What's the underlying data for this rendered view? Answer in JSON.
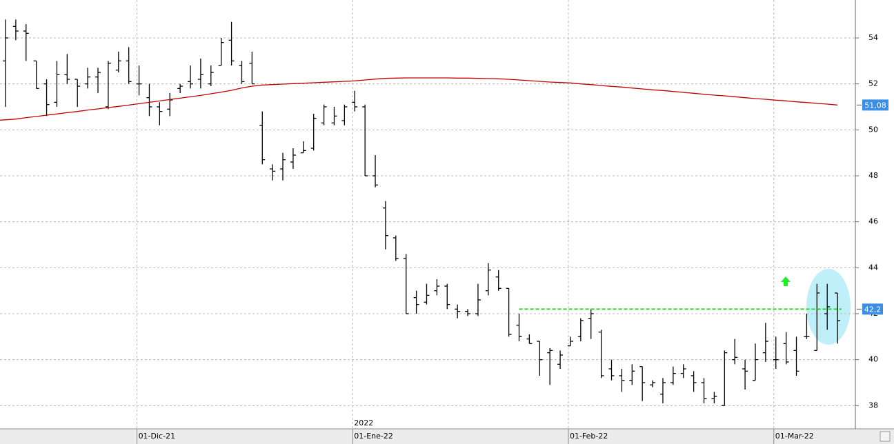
{
  "chart_data": {
    "type": "ohlc",
    "categories": [
      null,
      null,
      null,
      null,
      null,
      null,
      null,
      null,
      null,
      null,
      null,
      null,
      null,
      "01-Dic-21",
      null,
      null,
      null,
      null,
      null,
      null,
      null,
      null,
      null,
      null,
      null,
      null,
      null,
      null,
      null,
      null,
      null,
      null,
      null,
      null,
      "01-Ene-22",
      null,
      null,
      null,
      null,
      null,
      null,
      null,
      null,
      null,
      null,
      null,
      null,
      null,
      null,
      null,
      null,
      null,
      null,
      null,
      null,
      "01-Feb-22",
      null,
      null,
      null,
      null,
      null,
      null,
      null,
      null,
      null,
      null,
      null,
      null,
      null,
      null,
      null,
      null,
      null,
      null,
      null,
      "01-Mar-22",
      null,
      null,
      null,
      null,
      null,
      null
    ],
    "year_label": {
      "text": "2022",
      "index": 34
    },
    "ohlc": {
      "color": "#000000",
      "open": [
        53.0,
        54.5,
        54.3,
        53.0,
        52.0,
        51.2,
        52.4,
        52.2,
        52.0,
        52.3,
        51.0,
        52.6,
        53.0,
        52.0,
        51.4,
        51.0,
        50.9,
        51.8,
        52.1,
        52.2,
        52.0,
        52.8,
        53.9,
        52.8,
        52.9,
        50.2,
        48.3,
        48.3,
        48.6,
        49.0,
        49.2,
        50.3,
        50.3,
        50.4,
        51.2,
        51.0,
        48.0,
        46.6,
        45.3,
        44.4,
        42.7,
        42.5,
        43.0,
        43.2,
        42.2,
        42.1,
        42.0,
        43.0,
        43.6,
        43.1,
        41.5,
        40.9,
        40.8,
        40.3,
        39.8,
        40.6,
        41.0,
        41.8,
        41.2,
        39.6,
        39.3,
        39.1,
        39.7,
        38.9,
        38.5,
        39.0,
        39.4,
        39.3,
        39.0,
        38.3,
        38.0,
        40.0,
        39.6,
        39.1,
        40.3,
        40.0,
        40.7,
        40.4,
        41.0,
        40.4,
        42.0,
        42.9
      ],
      "high": [
        54.8,
        54.8,
        54.6,
        53.0,
        52.2,
        53.0,
        53.3,
        52.2,
        52.7,
        52.7,
        53.0,
        53.4,
        53.6,
        52.8,
        52.0,
        51.2,
        51.6,
        52.0,
        52.8,
        53.1,
        52.8,
        54.0,
        54.7,
        53.0,
        53.4,
        50.8,
        48.5,
        49.0,
        49.2,
        49.5,
        50.7,
        51.1,
        51.0,
        51.1,
        51.7,
        51.1,
        48.9,
        46.9,
        45.4,
        44.6,
        43.0,
        43.3,
        43.5,
        43.3,
        42.4,
        42.2,
        43.3,
        44.2,
        43.9,
        43.1,
        42.0,
        41.1,
        40.8,
        40.5,
        40.4,
        41.0,
        41.8,
        42.2,
        41.3,
        40.0,
        39.6,
        39.8,
        39.7,
        39.1,
        39.2,
        39.7,
        39.8,
        39.5,
        39.2,
        38.6,
        40.4,
        40.9,
        40.0,
        40.7,
        41.6,
        41.0,
        41.2,
        41.0,
        42.0,
        43.3,
        43.3,
        42.9
      ],
      "low": [
        51.0,
        53.9,
        53.0,
        51.8,
        50.6,
        51.0,
        52.0,
        51.0,
        51.8,
        51.6,
        50.9,
        52.5,
        52.0,
        51.5,
        50.6,
        50.2,
        50.6,
        51.6,
        51.8,
        51.8,
        51.9,
        52.8,
        52.8,
        52.0,
        52.0,
        48.5,
        47.8,
        47.8,
        48.3,
        49.0,
        49.1,
        50.2,
        50.2,
        50.2,
        50.8,
        48.0,
        47.5,
        44.8,
        44.3,
        42.0,
        42.0,
        42.4,
        42.8,
        42.2,
        41.8,
        41.9,
        41.9,
        42.8,
        43.0,
        41.0,
        40.8,
        40.7,
        39.3,
        38.9,
        39.6,
        40.6,
        40.8,
        40.9,
        39.2,
        39.1,
        38.6,
        38.9,
        38.2,
        38.8,
        38.1,
        38.9,
        39.2,
        38.6,
        38.1,
        38.1,
        38.0,
        39.8,
        38.7,
        39.1,
        39.9,
        39.6,
        39.8,
        39.3,
        40.9,
        40.4,
        41.3,
        40.7
      ],
      "close": [
        54.0,
        54.3,
        54.2,
        51.8,
        51.1,
        52.4,
        52.2,
        51.9,
        52.3,
        52.5,
        52.9,
        53.0,
        52.1,
        52.0,
        51.0,
        50.8,
        51.3,
        51.9,
        52.0,
        52.4,
        52.5,
        53.8,
        53.0,
        52.1,
        52.0,
        48.7,
        48.2,
        48.7,
        48.9,
        49.1,
        50.5,
        51.0,
        50.6,
        51.0,
        51.0,
        48.0,
        47.6,
        45.4,
        44.4,
        42.0,
        42.4,
        42.8,
        43.2,
        42.4,
        42.1,
        42.0,
        42.6,
        43.9,
        43.1,
        41.1,
        41.0,
        40.7,
        40.0,
        40.4,
        40.2,
        40.8,
        41.7,
        42.0,
        39.3,
        39.3,
        39.1,
        39.5,
        39.0,
        39.0,
        39.0,
        39.4,
        39.6,
        39.0,
        38.3,
        38.4,
        40.3,
        40.1,
        39.5,
        40.0,
        40.8,
        40.0,
        39.9,
        39.5,
        41.0,
        42.9,
        42.3,
        41.7
      ]
    },
    "ma": {
      "color": "#c00000",
      "last_label": "51,08",
      "values": [
        50.42,
        50.47,
        50.53,
        50.58,
        50.64,
        50.69,
        50.75,
        50.8,
        50.86,
        50.91,
        50.97,
        51.02,
        51.08,
        51.14,
        51.2,
        51.26,
        51.32,
        51.38,
        51.44,
        51.5,
        51.57,
        51.64,
        51.72,
        51.82,
        51.9,
        51.95,
        51.97,
        51.99,
        52.01,
        52.03,
        52.05,
        52.07,
        52.09,
        52.11,
        52.13,
        52.17,
        52.21,
        52.24,
        52.25,
        52.26,
        52.26,
        52.26,
        52.26,
        52.26,
        52.25,
        52.25,
        52.24,
        52.23,
        52.22,
        52.2,
        52.17,
        52.14,
        52.11,
        52.08,
        52.06,
        52.04,
        52.0,
        51.97,
        51.93,
        51.89,
        51.86,
        51.82,
        51.78,
        51.74,
        51.71,
        51.67,
        51.63,
        51.59,
        51.55,
        51.51,
        51.48,
        51.44,
        51.4,
        51.36,
        51.33,
        51.29,
        51.26,
        51.22,
        51.19,
        51.15,
        51.12,
        51.08
      ]
    },
    "level": {
      "value": 42.2,
      "label": "42,2",
      "color": "#22dd22",
      "start_index": 50
    },
    "ylim": [
      36.99,
      55.65
    ],
    "yticks": [
      38,
      40,
      42,
      44,
      46,
      48,
      50,
      52,
      54
    ],
    "grid": true
  }
}
